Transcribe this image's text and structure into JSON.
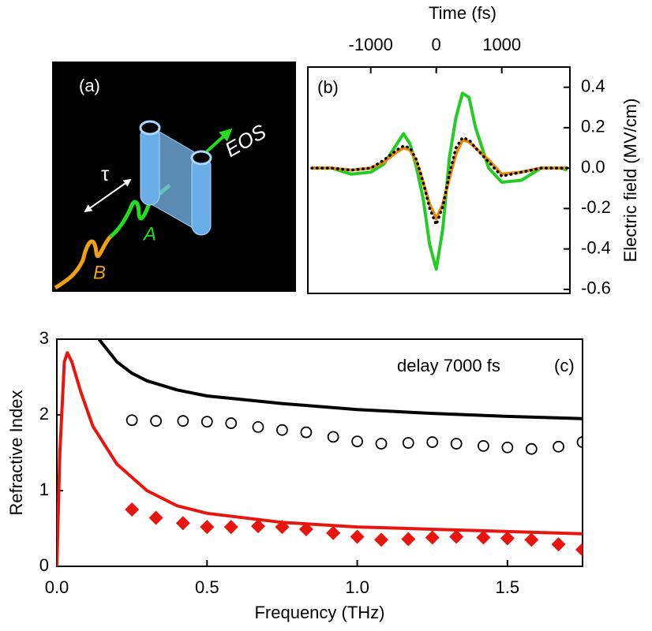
{
  "diagram": {
    "label": "(a)",
    "tau": "τ",
    "probe": "EOS",
    "pulse_a": "A",
    "pulse_b": "B"
  },
  "chart_data": [
    {
      "type": "line",
      "label": "(b)",
      "x_label": "Time (fs)",
      "y_label": "Electric field (MV/cm)",
      "x": [
        -1900,
        -1600,
        -1300,
        -1000,
        -800,
        -600,
        -500,
        -400,
        -300,
        -200,
        -100,
        0,
        100,
        200,
        300,
        400,
        500,
        600,
        800,
        1000,
        1300,
        1600,
        1900,
        2000
      ],
      "series": [
        {
          "color": "#22cc22",
          "values": [
            0.0,
            0.0,
            -0.03,
            -0.02,
            0.02,
            0.12,
            0.17,
            0.12,
            0.0,
            -0.15,
            -0.38,
            -0.5,
            -0.3,
            0.05,
            0.25,
            0.37,
            0.35,
            0.2,
            0.0,
            -0.07,
            -0.06,
            0.0,
            0.0,
            -0.01
          ]
        },
        {
          "color": "#e8890c",
          "values": [
            0.0,
            0.0,
            -0.01,
            0.0,
            0.03,
            0.08,
            0.1,
            0.09,
            0.03,
            -0.07,
            -0.18,
            -0.25,
            -0.18,
            -0.05,
            0.07,
            0.14,
            0.13,
            0.1,
            0.04,
            -0.03,
            -0.02,
            0.0,
            0.0,
            0.0
          ]
        },
        {
          "color": "#000000",
          "dash": "dotted",
          "values": [
            0.0,
            0.0,
            -0.01,
            0.0,
            0.04,
            0.09,
            0.11,
            0.1,
            0.04,
            -0.07,
            -0.2,
            -0.28,
            -0.19,
            -0.03,
            0.1,
            0.15,
            0.14,
            0.1,
            0.03,
            -0.04,
            -0.02,
            0.0,
            0.0,
            0.0
          ]
        }
      ],
      "xlim": [
        -1960,
        2040
      ],
      "ylim": [
        -0.62,
        0.5
      ],
      "xticks": [
        -1000,
        0,
        1000
      ],
      "yticks": [
        -0.6,
        -0.4,
        -0.2,
        {
          "value": 0,
          "label": "0.0"
        },
        0.2,
        0.4
      ],
      "x_axis_side": "top",
      "y_axis_side": "right"
    },
    {
      "type": "line",
      "label": "(c)",
      "annotation": "delay 7000 fs",
      "x_label": "Frequency (THz)",
      "y_label": "Refractive Index",
      "series": [
        {
          "type": "line",
          "color": "#000000",
          "x": [
            0.14,
            0.2,
            0.25,
            0.3,
            0.4,
            0.5,
            0.75,
            1.0,
            1.25,
            1.5,
            1.75
          ],
          "values": [
            3.0,
            2.7,
            2.55,
            2.45,
            2.33,
            2.25,
            2.15,
            2.07,
            2.02,
            1.98,
            1.95
          ]
        },
        {
          "type": "line",
          "color": "#e8150e",
          "x": [
            0,
            0.01,
            0.025,
            0.035,
            0.05,
            0.08,
            0.12,
            0.2,
            0.3,
            0.4,
            0.5,
            0.75,
            1.0,
            1.25,
            1.5,
            1.75
          ],
          "values": [
            0,
            1.5,
            2.7,
            2.82,
            2.7,
            2.3,
            1.85,
            1.35,
            1.0,
            0.8,
            0.7,
            0.58,
            0.52,
            0.49,
            0.46,
            0.43
          ]
        },
        {
          "type": "scatter",
          "marker": "circle",
          "color": "#000000",
          "x": [
            0.25,
            0.33,
            0.42,
            0.5,
            0.58,
            0.67,
            0.75,
            0.83,
            0.92,
            1.0,
            1.08,
            1.17,
            1.25,
            1.33,
            1.42,
            1.5,
            1.58,
            1.67,
            1.75
          ],
          "values": [
            1.93,
            1.92,
            1.92,
            1.91,
            1.89,
            1.84,
            1.8,
            1.77,
            1.71,
            1.65,
            1.62,
            1.63,
            1.64,
            1.62,
            1.59,
            1.57,
            1.55,
            1.58,
            1.64
          ]
        },
        {
          "type": "scatter",
          "marker": "diamond",
          "color": "#e8150e",
          "x": [
            0.25,
            0.33,
            0.42,
            0.5,
            0.58,
            0.67,
            0.75,
            0.83,
            0.92,
            1.0,
            1.08,
            1.17,
            1.25,
            1.33,
            1.42,
            1.5,
            1.58,
            1.67,
            1.75
          ],
          "values": [
            0.75,
            0.64,
            0.57,
            0.52,
            0.52,
            0.53,
            0.52,
            0.49,
            0.44,
            0.39,
            0.35,
            0.36,
            0.38,
            0.39,
            0.38,
            0.37,
            0.35,
            0.29,
            0.22
          ]
        }
      ],
      "xlim": [
        0,
        1.75
      ],
      "ylim": [
        0,
        3
      ],
      "xticks": [
        {
          "value": 0,
          "label": "0.0"
        },
        0.5,
        {
          "value": 1,
          "label": "1.0"
        },
        1.5
      ],
      "yticks": [
        0,
        1,
        2,
        3
      ],
      "x_axis_side": "bottom",
      "y_axis_side": "left"
    }
  ]
}
